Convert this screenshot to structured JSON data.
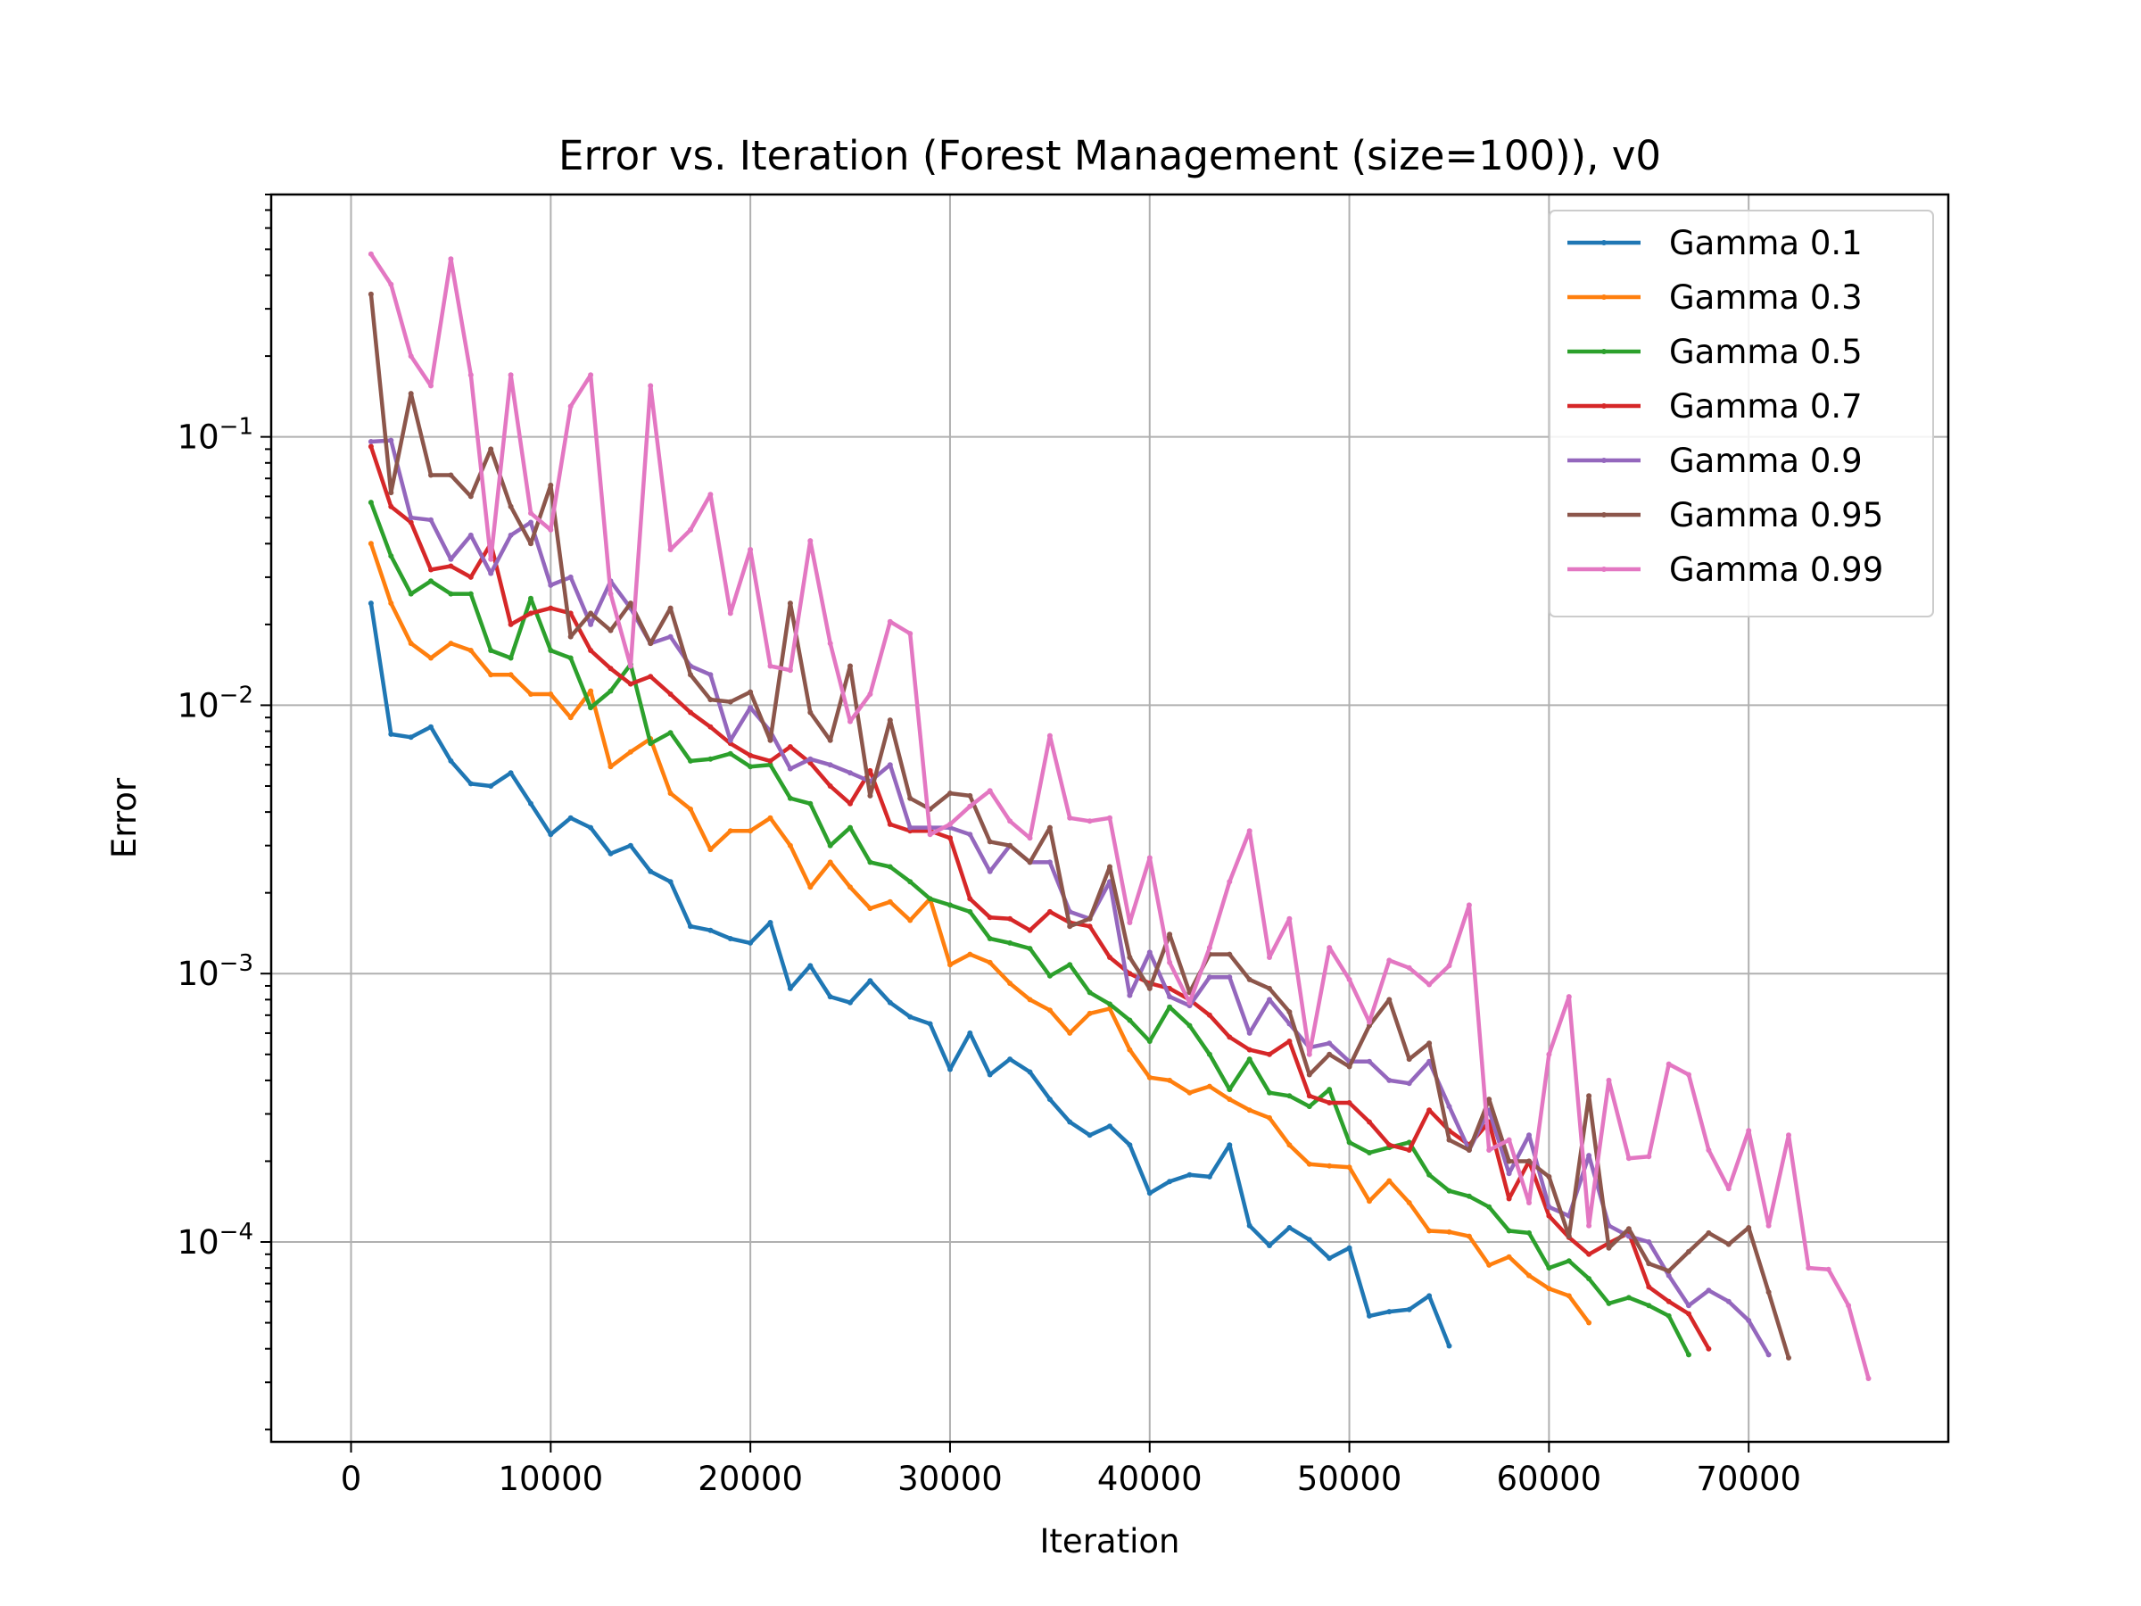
{
  "chart_data": {
    "type": "line",
    "title": "Error vs. Iteration (Forest Management (size=100)), v0",
    "xlabel": "Iteration",
    "ylabel": "Error",
    "xlim": [
      -4000,
      80000
    ],
    "ylim": [
      1.8e-05,
      0.8
    ],
    "yscale": "log",
    "grid": true,
    "legend_position": "top-right",
    "x_ticks": [
      0,
      10000,
      20000,
      30000,
      40000,
      50000,
      60000,
      70000
    ],
    "x_tick_labels": [
      "0",
      "10000",
      "20000",
      "30000",
      "40000",
      "50000",
      "60000",
      "70000"
    ],
    "y_ticks": [
      {
        "value": 0.1,
        "base": "10",
        "exp": "−1"
      },
      {
        "value": 0.01,
        "base": "10",
        "exp": "−2"
      },
      {
        "value": 0.001,
        "base": "10",
        "exp": "−3"
      },
      {
        "value": 0.0001,
        "base": "10",
        "exp": "−4"
      }
    ],
    "series": [
      {
        "name": "Gamma 0.1",
        "color": "#1f77b4",
        "x": [
          1000,
          2000,
          3000,
          4000,
          5000,
          6000,
          7000,
          8000,
          9000,
          10000,
          11000,
          12000,
          13000,
          14000,
          15000,
          16000,
          17000,
          18000,
          19000,
          20000,
          21000,
          22000,
          23000,
          24000,
          25000,
          26000,
          27000,
          28000,
          29000,
          30000,
          31000,
          32000,
          33000,
          34000,
          35000,
          36000,
          37000,
          38000,
          39000,
          40000,
          41000,
          42000,
          43000,
          44000,
          45000,
          46000,
          47000,
          48000,
          49000,
          50000,
          51000,
          52000,
          53000,
          54000,
          55000
        ],
        "y": [
          0.024,
          0.0078,
          0.0076,
          0.0083,
          0.0062,
          0.0051,
          0.005,
          0.0056,
          0.0043,
          0.0033,
          0.0038,
          0.0035,
          0.0028,
          0.003,
          0.0024,
          0.0022,
          0.0015,
          0.00145,
          0.00135,
          0.0013,
          0.00155,
          0.00088,
          0.00107,
          0.00082,
          0.00078,
          0.00094,
          0.00078,
          0.00069,
          0.00065,
          0.00044,
          0.0006,
          0.00042,
          0.00048,
          0.00043,
          0.00034,
          0.00028,
          0.00025,
          0.00027,
          0.00023,
          0.000152,
          0.000168,
          0.000178,
          0.000175,
          0.00023,
          0.000115,
          9.7e-05,
          0.000113,
          0.000102,
          8.7e-05,
          9.5e-05,
          5.3e-05,
          5.5e-05,
          5.6e-05,
          6.3e-05,
          4.1e-05
        ]
      },
      {
        "name": "Gamma 0.3",
        "color": "#ff7f0e",
        "x": [
          1000,
          2000,
          3000,
          4000,
          5000,
          6000,
          7000,
          8000,
          9000,
          10000,
          11000,
          12000,
          13000,
          14000,
          15000,
          16000,
          17000,
          18000,
          19000,
          20000,
          21000,
          22000,
          23000,
          24000,
          25000,
          26000,
          27000,
          28000,
          29000,
          30000,
          31000,
          32000,
          33000,
          34000,
          35000,
          36000,
          37000,
          38000,
          39000,
          40000,
          41000,
          42000,
          43000,
          44000,
          45000,
          46000,
          47000,
          48000,
          49000,
          50000,
          51000,
          52000,
          53000,
          54000,
          55000,
          56000,
          57000,
          58000,
          59000,
          60000,
          61000,
          62000
        ],
        "y": [
          0.04,
          0.024,
          0.017,
          0.015,
          0.017,
          0.016,
          0.013,
          0.013,
          0.011,
          0.011,
          0.009,
          0.0113,
          0.0059,
          0.0067,
          0.0075,
          0.0047,
          0.0041,
          0.0029,
          0.0034,
          0.0034,
          0.0038,
          0.003,
          0.0021,
          0.0026,
          0.0021,
          0.00175,
          0.00185,
          0.00158,
          0.0019,
          0.00108,
          0.00118,
          0.0011,
          0.00092,
          0.0008,
          0.00073,
          0.0006,
          0.00071,
          0.00074,
          0.00052,
          0.00041,
          0.0004,
          0.00036,
          0.00038,
          0.00034,
          0.00031,
          0.00029,
          0.00023,
          0.000195,
          0.000192,
          0.00019,
          0.000142,
          0.000169,
          0.00014,
          0.00011,
          0.000109,
          0.000105,
          8.2e-05,
          8.8e-05,
          7.5e-05,
          6.7e-05,
          6.3e-05,
          5e-05
        ]
      },
      {
        "name": "Gamma 0.5",
        "color": "#2ca02c",
        "x": [
          1000,
          2000,
          3000,
          4000,
          5000,
          6000,
          7000,
          8000,
          9000,
          10000,
          11000,
          12000,
          13000,
          14000,
          15000,
          16000,
          17000,
          18000,
          19000,
          20000,
          21000,
          22000,
          23000,
          24000,
          25000,
          26000,
          27000,
          28000,
          29000,
          30000,
          31000,
          32000,
          33000,
          34000,
          35000,
          36000,
          37000,
          38000,
          39000,
          40000,
          41000,
          42000,
          43000,
          44000,
          45000,
          46000,
          47000,
          48000,
          49000,
          50000,
          51000,
          52000,
          53000,
          54000,
          55000,
          56000,
          57000,
          58000,
          59000,
          60000,
          61000,
          62000,
          63000,
          64000,
          65000,
          66000,
          67000
        ],
        "y": [
          0.057,
          0.036,
          0.026,
          0.029,
          0.026,
          0.026,
          0.016,
          0.015,
          0.025,
          0.016,
          0.015,
          0.0098,
          0.0113,
          0.0142,
          0.0072,
          0.0079,
          0.0062,
          0.0063,
          0.0066,
          0.0059,
          0.006,
          0.0045,
          0.0043,
          0.003,
          0.0035,
          0.0026,
          0.0025,
          0.0022,
          0.0019,
          0.0018,
          0.0017,
          0.00135,
          0.0013,
          0.00124,
          0.00098,
          0.00108,
          0.00085,
          0.00077,
          0.00067,
          0.00056,
          0.00075,
          0.00064,
          0.0005,
          0.00037,
          0.00048,
          0.00036,
          0.00035,
          0.00032,
          0.00037,
          0.000235,
          0.000215,
          0.000225,
          0.000235,
          0.000178,
          0.000155,
          0.000148,
          0.000135,
          0.00011,
          0.000108,
          8e-05,
          8.5e-05,
          7.3e-05,
          5.9e-05,
          6.2e-05,
          5.8e-05,
          5.3e-05,
          3.8e-05
        ]
      },
      {
        "name": "Gamma 0.7",
        "color": "#d62728",
        "x": [
          1000,
          2000,
          3000,
          4000,
          5000,
          6000,
          7000,
          8000,
          9000,
          10000,
          11000,
          12000,
          13000,
          14000,
          15000,
          16000,
          17000,
          18000,
          19000,
          20000,
          21000,
          22000,
          23000,
          24000,
          25000,
          26000,
          27000,
          28000,
          29000,
          30000,
          31000,
          32000,
          33000,
          34000,
          35000,
          36000,
          37000,
          38000,
          39000,
          40000,
          41000,
          42000,
          43000,
          44000,
          45000,
          46000,
          47000,
          48000,
          49000,
          50000,
          51000,
          52000,
          53000,
          54000,
          55000,
          56000,
          57000,
          58000,
          59000,
          60000,
          61000,
          62000,
          63000,
          64000,
          65000,
          66000,
          67000,
          68000
        ],
        "y": [
          0.092,
          0.055,
          0.048,
          0.032,
          0.033,
          0.03,
          0.04,
          0.02,
          0.022,
          0.023,
          0.022,
          0.016,
          0.0137,
          0.012,
          0.0128,
          0.011,
          0.0094,
          0.0083,
          0.0072,
          0.0065,
          0.0062,
          0.007,
          0.0061,
          0.005,
          0.0043,
          0.0057,
          0.0036,
          0.0034,
          0.0034,
          0.0032,
          0.0019,
          0.00162,
          0.0016,
          0.00145,
          0.0017,
          0.00155,
          0.0015,
          0.00115,
          0.001,
          0.00092,
          0.00088,
          0.0008,
          0.0007,
          0.00058,
          0.00052,
          0.0005,
          0.00056,
          0.00035,
          0.00033,
          0.00033,
          0.00028,
          0.00023,
          0.00022,
          0.00031,
          0.00026,
          0.00023,
          0.00028,
          0.000145,
          0.0002,
          0.000125,
          0.000104,
          9e-05,
          9.9e-05,
          0.000108,
          6.8e-05,
          6e-05,
          5.4e-05,
          4e-05
        ]
      },
      {
        "name": "Gamma 0.9",
        "color": "#9467bd",
        "x": [
          1000,
          2000,
          3000,
          4000,
          5000,
          6000,
          7000,
          8000,
          9000,
          10000,
          11000,
          12000,
          13000,
          14000,
          15000,
          16000,
          17000,
          18000,
          19000,
          20000,
          21000,
          22000,
          23000,
          24000,
          25000,
          26000,
          27000,
          28000,
          29000,
          30000,
          31000,
          32000,
          33000,
          34000,
          35000,
          36000,
          37000,
          38000,
          39000,
          40000,
          41000,
          42000,
          43000,
          44000,
          45000,
          46000,
          47000,
          48000,
          49000,
          50000,
          51000,
          52000,
          53000,
          54000,
          55000,
          56000,
          57000,
          58000,
          59000,
          60000,
          61000,
          62000,
          63000,
          64000,
          65000,
          66000,
          67000,
          68000,
          69000,
          70000,
          71000
        ],
        "y": [
          0.096,
          0.097,
          0.05,
          0.049,
          0.035,
          0.043,
          0.031,
          0.043,
          0.048,
          0.028,
          0.03,
          0.02,
          0.029,
          0.023,
          0.017,
          0.018,
          0.014,
          0.013,
          0.0074,
          0.0098,
          0.008,
          0.0058,
          0.0063,
          0.006,
          0.0056,
          0.0052,
          0.006,
          0.0035,
          0.0035,
          0.0035,
          0.0033,
          0.0024,
          0.003,
          0.0026,
          0.0026,
          0.0017,
          0.0016,
          0.0022,
          0.00083,
          0.0012,
          0.00082,
          0.00076,
          0.00097,
          0.00097,
          0.0006,
          0.0008,
          0.00065,
          0.00053,
          0.00055,
          0.00047,
          0.00047,
          0.0004,
          0.00039,
          0.00047,
          0.00032,
          0.00022,
          0.00031,
          0.00018,
          0.00025,
          0.000135,
          0.000125,
          0.00021,
          0.000115,
          0.000105,
          0.0001,
          7.5e-05,
          5.8e-05,
          6.6e-05,
          6e-05,
          5.1e-05,
          3.8e-05
        ]
      },
      {
        "name": "Gamma 0.95",
        "color": "#8c564b",
        "x": [
          1000,
          2000,
          3000,
          4000,
          5000,
          6000,
          7000,
          8000,
          9000,
          10000,
          11000,
          12000,
          13000,
          14000,
          15000,
          16000,
          17000,
          18000,
          19000,
          20000,
          21000,
          22000,
          23000,
          24000,
          25000,
          26000,
          27000,
          28000,
          29000,
          30000,
          31000,
          32000,
          33000,
          34000,
          35000,
          36000,
          37000,
          38000,
          39000,
          40000,
          41000,
          42000,
          43000,
          44000,
          45000,
          46000,
          47000,
          48000,
          49000,
          50000,
          51000,
          52000,
          53000,
          54000,
          55000,
          56000,
          57000,
          58000,
          59000,
          60000,
          61000,
          62000,
          63000,
          64000,
          65000,
          66000,
          67000,
          68000,
          69000,
          70000,
          71000,
          72000
        ],
        "y": [
          0.34,
          0.062,
          0.145,
          0.072,
          0.072,
          0.06,
          0.09,
          0.055,
          0.04,
          0.066,
          0.018,
          0.022,
          0.019,
          0.024,
          0.017,
          0.023,
          0.013,
          0.0105,
          0.0103,
          0.0112,
          0.0074,
          0.024,
          0.0094,
          0.0074,
          0.014,
          0.0046,
          0.0088,
          0.0045,
          0.0041,
          0.0047,
          0.0046,
          0.0031,
          0.003,
          0.0026,
          0.0035,
          0.0015,
          0.0016,
          0.0025,
          0.00115,
          0.00088,
          0.0014,
          0.00085,
          0.00118,
          0.00118,
          0.00095,
          0.00088,
          0.00072,
          0.00042,
          0.0005,
          0.00045,
          0.00064,
          0.0008,
          0.00048,
          0.00055,
          0.00024,
          0.00022,
          0.00034,
          0.0002,
          0.0002,
          0.000175,
          0.000105,
          0.00035,
          9.5e-05,
          0.000112,
          8.3e-05,
          7.8e-05,
          9.2e-05,
          0.000108,
          9.8e-05,
          0.000113,
          6.5e-05,
          3.7e-05
        ]
      },
      {
        "name": "Gamma 0.99",
        "color": "#e377c2",
        "x": [
          1000,
          2000,
          3000,
          4000,
          5000,
          6000,
          7000,
          8000,
          9000,
          10000,
          11000,
          12000,
          13000,
          14000,
          15000,
          16000,
          17000,
          18000,
          19000,
          20000,
          21000,
          22000,
          23000,
          24000,
          25000,
          26000,
          27000,
          28000,
          29000,
          30000,
          31000,
          32000,
          33000,
          34000,
          35000,
          36000,
          37000,
          38000,
          39000,
          40000,
          41000,
          42000,
          43000,
          44000,
          45000,
          46000,
          47000,
          48000,
          49000,
          50000,
          51000,
          52000,
          53000,
          54000,
          55000,
          56000,
          57000,
          58000,
          59000,
          60000,
          61000,
          62000,
          63000,
          64000,
          65000,
          66000,
          67000,
          68000,
          69000,
          70000,
          71000,
          72000,
          73000,
          74000,
          75000,
          76000
        ],
        "y": [
          0.48,
          0.37,
          0.2,
          0.155,
          0.46,
          0.17,
          0.035,
          0.17,
          0.052,
          0.045,
          0.13,
          0.17,
          0.026,
          0.014,
          0.155,
          0.038,
          0.045,
          0.061,
          0.022,
          0.038,
          0.014,
          0.0135,
          0.041,
          0.017,
          0.0087,
          0.011,
          0.0205,
          0.0185,
          0.0033,
          0.0036,
          0.0042,
          0.0048,
          0.0037,
          0.0032,
          0.0077,
          0.0038,
          0.0037,
          0.0038,
          0.00155,
          0.0027,
          0.0011,
          0.00078,
          0.00125,
          0.0022,
          0.0034,
          0.00115,
          0.0016,
          0.0005,
          0.00125,
          0.00095,
          0.00066,
          0.00112,
          0.00105,
          0.00091,
          0.00107,
          0.0018,
          0.00022,
          0.00024,
          0.00014,
          0.0005,
          0.00082,
          0.000115,
          0.0004,
          0.000205,
          0.000208,
          0.00046,
          0.00042,
          0.00022,
          0.000158,
          0.00026,
          0.000115,
          0.00025,
          8e-05,
          7.9e-05,
          5.8e-05,
          3.1e-05
        ]
      }
    ]
  }
}
